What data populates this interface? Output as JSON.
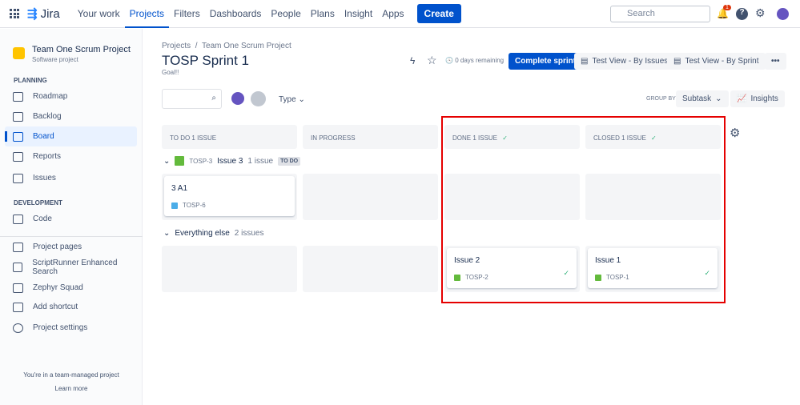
{
  "topnav": {
    "logo": "Jira",
    "items": [
      "Your work",
      "Projects",
      "Filters",
      "Dashboards",
      "People",
      "Plans",
      "Insight",
      "Apps"
    ],
    "active": "Projects",
    "create": "Create",
    "search_placeholder": "Search",
    "notification_count": "1"
  },
  "sidebar": {
    "project_name": "Team One Scrum Project",
    "project_type": "Software project",
    "planning_heading": "PLANNING",
    "planning": [
      "Roadmap",
      "Backlog",
      "Board",
      "Reports",
      "Issues"
    ],
    "active": "Board",
    "development_heading": "DEVELOPMENT",
    "development": [
      "Code"
    ],
    "other": [
      "Project pages",
      "ScriptRunner Enhanced Search",
      "Zephyr Squad",
      "Add shortcut",
      "Project settings"
    ],
    "footer_text": "You're in a team-managed project",
    "learn_more": "Learn more"
  },
  "header": {
    "breadcrumb_projects": "Projects",
    "breadcrumb_sep": "/",
    "breadcrumb_project": "Team One Scrum Project",
    "title": "TOSP Sprint 1",
    "goal": "Goal!!",
    "days_remaining": "0 days remaining",
    "complete_sprint": "Complete sprint",
    "view_issues": "Test View - By Issues",
    "view_sprint": "Test View - By Sprint",
    "more": "•••"
  },
  "filters": {
    "type": "Type",
    "group_by_label": "GROUP BY",
    "group_by_value": "Subtask",
    "insights": "Insights"
  },
  "columns": [
    {
      "label": "TO DO 1 ISSUE",
      "done": false
    },
    {
      "label": "IN PROGRESS",
      "done": false
    },
    {
      "label": "DONE 1 ISSUE",
      "done": true
    },
    {
      "label": "CLOSED 1 ISSUE",
      "done": true
    }
  ],
  "swimlane1": {
    "key": "TOSP-3",
    "title": "Issue 3",
    "count": "1 issue",
    "status": "TO DO"
  },
  "swimlane2": {
    "title": "Everything else",
    "count": "2 issues"
  },
  "cards": {
    "subtask": {
      "title": "3 A1",
      "key": "TOSP-6"
    },
    "done": {
      "title": "Issue 2",
      "key": "TOSP-2"
    },
    "closed": {
      "title": "Issue 1",
      "key": "TOSP-1"
    }
  },
  "colors": {
    "accent": "#0052cc",
    "highlight": "#e50000"
  }
}
